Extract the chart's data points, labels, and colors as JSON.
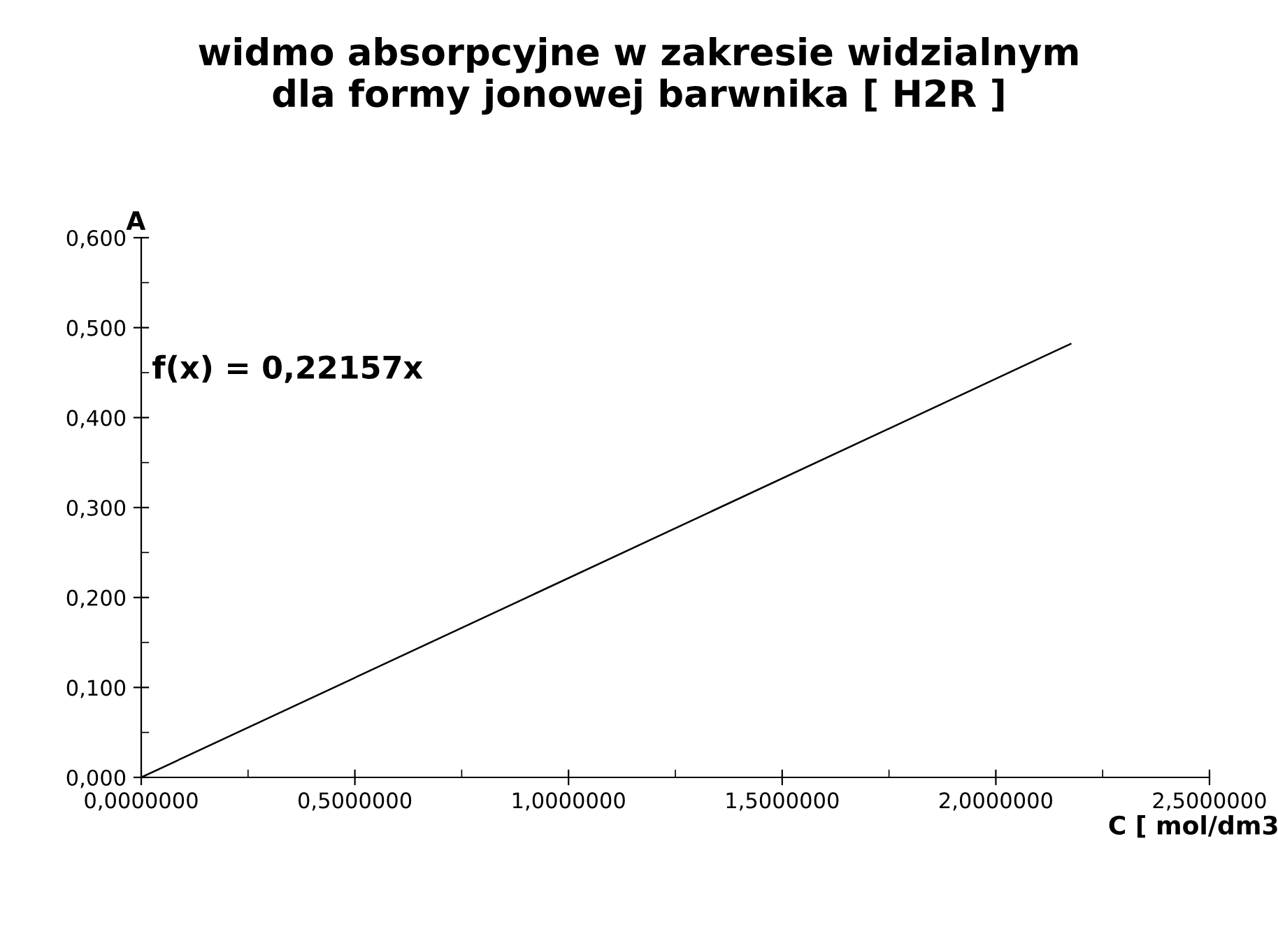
{
  "chart_data": {
    "type": "line",
    "title": "widmo absorpcyjne w zakresie widzialnym\ndla formy jonowej barwnika [ H2R ]",
    "xlabel": "C [ mol/dm3",
    "ylabel": "A",
    "annotations": [
      "f(x) = 0,22157x"
    ],
    "x": [
      0,
      2.175
    ],
    "series": [
      {
        "color": "#000000",
        "values": [
          0,
          0.482
        ]
      }
    ],
    "xlim": [
      0,
      2.5
    ],
    "ylim": [
      0,
      0.6
    ],
    "xticks": [
      {
        "value": 0,
        "label": "0,0000000"
      },
      {
        "value": 0.5,
        "label": "0,5000000"
      },
      {
        "value": 1,
        "label": "1,0000000"
      },
      {
        "value": 1.5,
        "label": "1,5000000"
      },
      {
        "value": 2,
        "label": "2,0000000"
      },
      {
        "value": 2.5,
        "label": "2,5000000"
      }
    ],
    "yticks": [
      {
        "value": 0,
        "label": "0,000"
      },
      {
        "value": 0.1,
        "label": "0,100"
      },
      {
        "value": 0.2,
        "label": "0,200"
      },
      {
        "value": 0.3,
        "label": "0,300"
      },
      {
        "value": 0.4,
        "label": "0,400"
      },
      {
        "value": 0.5,
        "label": "0,500"
      },
      {
        "value": 0.6,
        "label": "0,600"
      }
    ],
    "grid": false,
    "legend": false,
    "line_style": "solid"
  }
}
